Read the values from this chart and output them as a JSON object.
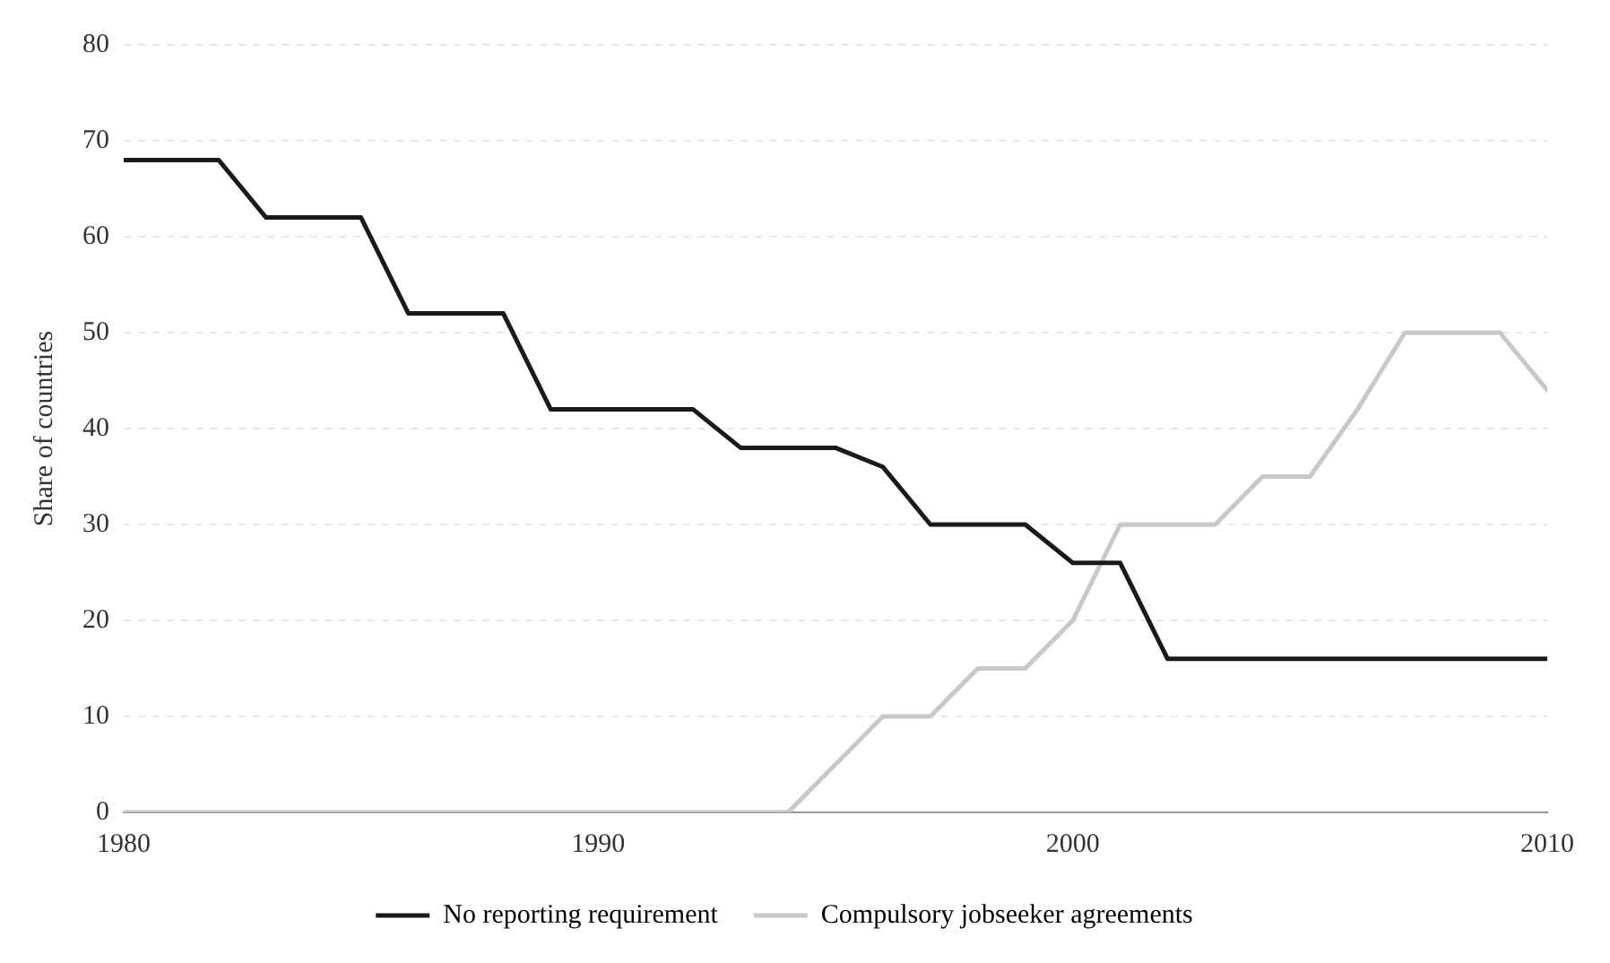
{
  "chart_data": {
    "type": "line",
    "ylabel": "Share of countries",
    "x": [
      1980,
      1981,
      1982,
      1983,
      1984,
      1985,
      1986,
      1987,
      1988,
      1989,
      1990,
      1991,
      1992,
      1993,
      1994,
      1995,
      1996,
      1997,
      1998,
      1999,
      2000,
      2001,
      2002,
      2003,
      2004,
      2005,
      2006,
      2007,
      2008,
      2009,
      2010
    ],
    "series": [
      {
        "name": "No reporting requirement",
        "color": "#1a1a1a",
        "values": [
          68,
          68,
          68,
          62,
          62,
          62,
          52,
          52,
          52,
          42,
          42,
          42,
          42,
          38,
          38,
          38,
          36,
          30,
          30,
          30,
          26,
          26,
          16,
          16,
          16,
          16,
          16,
          16,
          16,
          16,
          16
        ]
      },
      {
        "name": "Compulsory jobseeker agreements",
        "color": "#c8c8c8",
        "values": [
          0,
          0,
          0,
          0,
          0,
          0,
          0,
          0,
          0,
          0,
          0,
          0,
          0,
          0,
          0,
          5,
          10,
          10,
          15,
          15,
          20,
          30,
          30,
          30,
          35,
          35,
          42,
          50,
          50,
          50,
          44
        ]
      }
    ],
    "xlim": [
      1980,
      2010
    ],
    "xticks": [
      1980,
      1990,
      2000,
      2010
    ],
    "ylim": [
      0,
      80
    ],
    "yticks": [
      0,
      10,
      20,
      30,
      40,
      50,
      60,
      70,
      80
    ],
    "grid": "y",
    "legend": "bottom",
    "marker": "none",
    "line_style": "solid"
  }
}
